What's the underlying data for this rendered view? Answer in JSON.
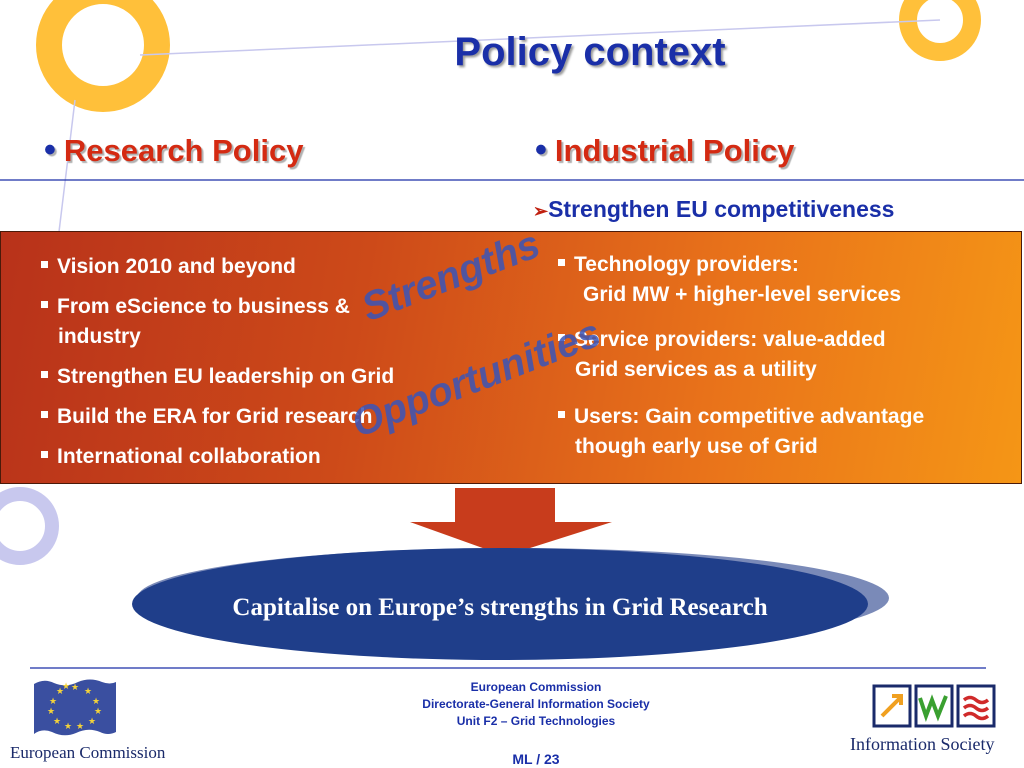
{
  "slide": {
    "title": "Policy context",
    "left_heading": "Research Policy",
    "right_heading": "Industrial Policy",
    "right_subheading": "Strengthen  EU competitiveness",
    "left_items": [
      "Vision 2010 and beyond",
      "From eScience to business &",
      "industry",
      "Strengthen EU leadership on Grid",
      "Build the ERA for Grid research",
      "International collaboration"
    ],
    "right_items": [
      "Technology providers:",
      "Grid MW + higher-level services",
      "Service providers: value-added",
      "Grid services as a utility",
      "Users: Gain competitive advantage",
      "though early use of Grid"
    ],
    "overlay_strengths": "Strengths",
    "overlay_opportunities": "Opportunities",
    "banner": "Capitalise on Europe’s strengths in Grid Research"
  },
  "footer": {
    "line1": "European Commission",
    "line2": "Directorate-General Information Society",
    "line3": "Unit F2 – Grid Technologies",
    "page": "ML / 23",
    "left_logo_label": "European Commission",
    "right_logo_label": "Information Society"
  },
  "colors": {
    "title_blue": "#1a2fa8",
    "heading_red": "#d42a12",
    "panel_start": "#b8321a",
    "panel_end": "#f59616",
    "banner_blue": "#1f3e8a",
    "ring_yellow": "#ffc03a",
    "ring_lilac": "#c8c8ee"
  },
  "icons": [
    "bullet-dot-icon",
    "arrow-bullet-icon",
    "square-bullet-icon",
    "down-arrow-icon",
    "eu-flag-icon",
    "information-society-icon"
  ]
}
